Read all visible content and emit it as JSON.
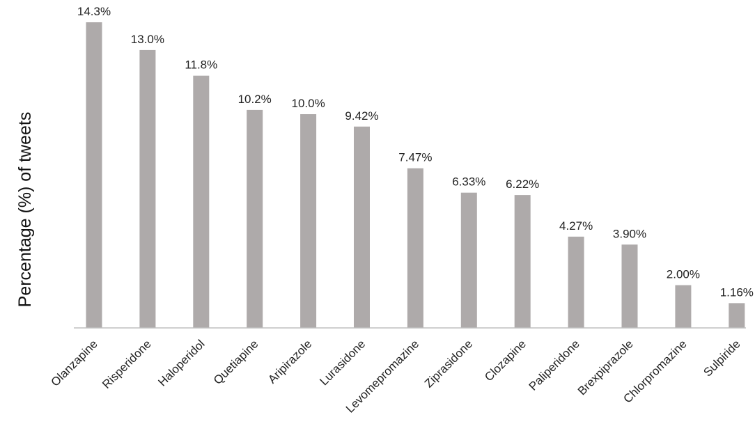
{
  "chart_data": {
    "type": "bar",
    "title": "",
    "xlabel": "",
    "ylabel": "Percentage (%) of tweets",
    "categories": [
      "Olanzapine",
      "Risperidone",
      "Haloperidol",
      "Quetiapine",
      "Aripirazole",
      "Lurasidone",
      "Levomepromazine",
      "Ziprasidone",
      "Clozapine",
      "Paliperidone",
      "Brexpiprazole",
      "Chlorpromazine",
      "Sulpiride"
    ],
    "values": [
      14.3,
      13.0,
      11.8,
      10.2,
      10.0,
      9.42,
      7.47,
      6.33,
      6.22,
      4.27,
      3.9,
      2.0,
      1.16
    ],
    "value_labels": [
      "14.3%",
      "13.0%",
      "11.8%",
      "10.2%",
      "10.0%",
      "9.42%",
      "7.47%",
      "6.33%",
      "6.22%",
      "4.27%",
      "3.90%",
      "2.00%",
      "1.16%"
    ],
    "ylim": [
      0,
      14.3
    ],
    "grid": false,
    "colors": {
      "bar": "#aeaaaa",
      "axis": "#bfbfbf"
    }
  }
}
